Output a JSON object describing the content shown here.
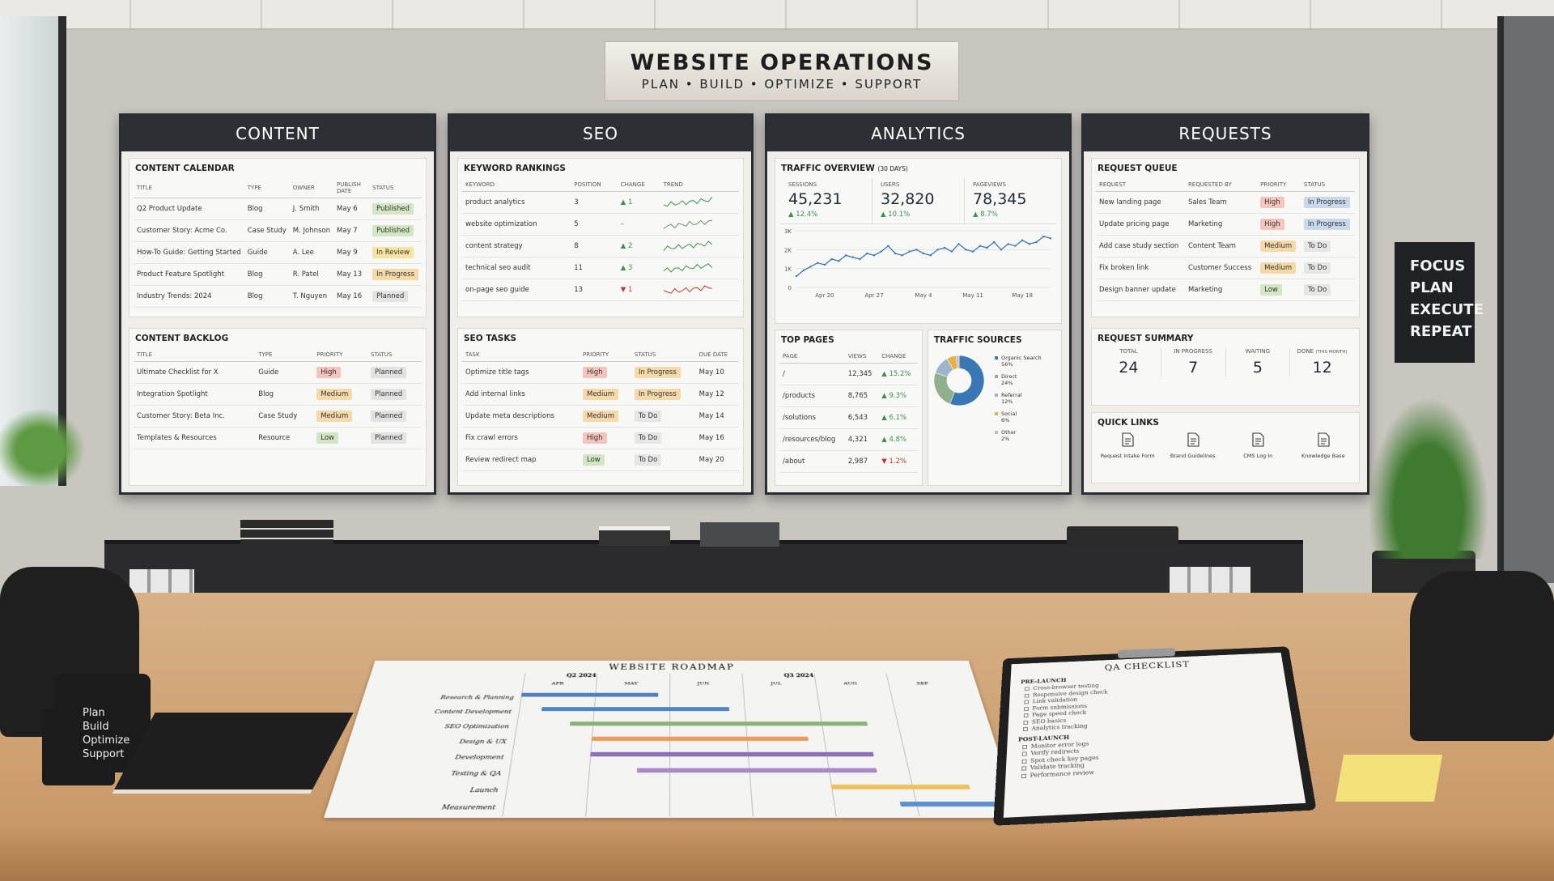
{
  "header": {
    "title": "WEBSITE OPERATIONS",
    "subtitle": "PLAN • BUILD • OPTIMIZE • SUPPORT"
  },
  "content": {
    "title": "CONTENT",
    "calendar": {
      "title": "CONTENT CALENDAR",
      "columns": [
        "TITLE",
        "TYPE",
        "OWNER",
        "PUBLISH DATE",
        "STATUS"
      ],
      "rows": [
        [
          "Q2 Product Update",
          "Blog",
          "J. Smith",
          "May 6",
          {
            "label": "Published",
            "fill": "#d3e6c4"
          }
        ],
        [
          "Customer Story: Acme Co.",
          "Case Study",
          "M. Johnson",
          "May 7",
          {
            "label": "Published",
            "fill": "#d3e6c4"
          }
        ],
        [
          "How-To Guide: Getting Started",
          "Guide",
          "A. Lee",
          "May 9",
          {
            "label": "In Review",
            "fill": "#f8e3a0"
          }
        ],
        [
          "Product Feature Spotlight",
          "Blog",
          "R. Patel",
          "May 13",
          {
            "label": "In Progress",
            "fill": "#f6d9a8"
          }
        ],
        [
          "Industry Trends: 2024",
          "Blog",
          "T. Nguyen",
          "May 16",
          {
            "label": "Planned",
            "fill": "#e3e3e3"
          }
        ]
      ]
    },
    "backlog": {
      "title": "CONTENT BACKLOG",
      "columns": [
        "TITLE",
        "TYPE",
        "PRIORITY",
        "STATUS"
      ],
      "rows": [
        [
          "Ultimate Checklist for X",
          "Guide",
          {
            "label": "High",
            "fill": "#f3c5bd"
          },
          {
            "label": "Planned",
            "fill": "#e3e3e3"
          }
        ],
        [
          "Integration Spotlight",
          "Blog",
          {
            "label": "Medium",
            "fill": "#f6d9a8"
          },
          {
            "label": "Planned",
            "fill": "#e3e3e3"
          }
        ],
        [
          "Customer Story: Beta Inc.",
          "Case Study",
          {
            "label": "Medium",
            "fill": "#f6d9a8"
          },
          {
            "label": "Planned",
            "fill": "#e3e3e3"
          }
        ],
        [
          "Templates & Resources",
          "Resource",
          {
            "label": "Low",
            "fill": "#d3e6c4"
          },
          {
            "label": "Planned",
            "fill": "#e3e3e3"
          }
        ]
      ]
    }
  },
  "seo": {
    "title": "SEO",
    "rankings": {
      "title": "KEYWORD RANKINGS",
      "columns": [
        "KEYWORD",
        "POSITION",
        "CHANGE",
        "TREND"
      ],
      "rows": [
        [
          "product analytics",
          "3",
          {
            "label": "▲ 1",
            "color": "#3f8f4f"
          }
        ],
        [
          "website optimization",
          "5",
          {
            "label": "–",
            "color": "#555555"
          }
        ],
        [
          "content strategy",
          "8",
          {
            "label": "▲ 2",
            "color": "#3f8f4f"
          }
        ],
        [
          "technical seo audit",
          "11",
          {
            "label": "▲ 3",
            "color": "#3f8f4f"
          }
        ],
        [
          "on-page seo guide",
          "13",
          {
            "label": "▼ 1",
            "color": "#c0392b"
          }
        ]
      ]
    },
    "tasks": {
      "title": "SEO TASKS",
      "columns": [
        "TASK",
        "PRIORITY",
        "STATUS",
        "DUE DATE"
      ],
      "rows": [
        [
          "Optimize title tags",
          {
            "label": "High",
            "fill": "#f3c5bd"
          },
          {
            "label": "In Progress",
            "fill": "#f6d9a8"
          },
          "May 10"
        ],
        [
          "Add internal links",
          {
            "label": "Medium",
            "fill": "#f6d9a8"
          },
          {
            "label": "In Progress",
            "fill": "#f6d9a8"
          },
          "May 12"
        ],
        [
          "Update meta descriptions",
          {
            "label": "Medium",
            "fill": "#f6d9a8"
          },
          {
            "label": "To Do",
            "fill": "#e6e6e6"
          },
          "May 14"
        ],
        [
          "Fix crawl errors",
          {
            "label": "High",
            "fill": "#f3c5bd"
          },
          {
            "label": "To Do",
            "fill": "#e6e6e6"
          },
          "May 16"
        ],
        [
          "Review redirect map",
          {
            "label": "Low",
            "fill": "#d3e6c4"
          },
          {
            "label": "To Do",
            "fill": "#e6e6e6"
          },
          "May 20"
        ]
      ]
    }
  },
  "analytics": {
    "title": "ANALYTICS",
    "overview": {
      "title": "TRAFFIC OVERVIEW",
      "note": "(30 DAYS)"
    },
    "kpis": [
      {
        "label": "SESSIONS",
        "value": "45,231",
        "change": "▲ 12.4%"
      },
      {
        "label": "USERS",
        "value": "32,820",
        "change": "▲ 10.1%"
      },
      {
        "label": "PAGEVIEWS",
        "value": "78,345",
        "change": "▲ 8.7%"
      }
    ],
    "traffic_chart": {
      "type": "line",
      "color": "#3a78b5",
      "grid": true,
      "categories": [
        null,
        null,
        null,
        null,
        "Apr 20",
        null,
        null,
        null,
        null,
        null,
        null,
        "Apr 27",
        null,
        null,
        null,
        null,
        null,
        null,
        "May 4",
        null,
        null,
        null,
        null,
        null,
        null,
        "May 11",
        null,
        null,
        null,
        null,
        null,
        null,
        "May 18",
        null,
        null,
        null,
        null
      ],
      "values": [
        600,
        900,
        1100,
        1300,
        1200,
        1500,
        1400,
        1700,
        1600,
        1500,
        1800,
        1700,
        1900,
        2200,
        1800,
        1700,
        1900,
        2000,
        1800,
        1700,
        2000,
        2100,
        1900,
        2300,
        2000,
        1900,
        2200,
        2100,
        2400,
        2000,
        2300,
        2200,
        2500,
        2300,
        2400,
        2700,
        2600
      ],
      "ylim": [
        0,
        3000
      ],
      "yticks": [
        0,
        {
          "value": 1000,
          "label": "1K"
        },
        {
          "value": 2000,
          "label": "2K"
        },
        {
          "value": 3000,
          "label": "3K"
        }
      ]
    },
    "top_pages": {
      "title": "TOP PAGES",
      "columns": [
        "PAGE",
        "VIEWS",
        "CHANGE"
      ],
      "rows": [
        [
          "/",
          "12,345",
          {
            "label": "▲ 15.2%",
            "color": "#3f8f4f"
          }
        ],
        [
          "/products",
          "8,765",
          {
            "label": "▲ 9.3%",
            "color": "#3f8f4f"
          }
        ],
        [
          "/solutions",
          "6,543",
          {
            "label": "▲ 6.1%",
            "color": "#3f8f4f"
          }
        ],
        [
          "/resources/blog",
          "4,321",
          {
            "label": "▲ 4.8%",
            "color": "#3f8f4f"
          }
        ],
        [
          "/about",
          "2,987",
          {
            "label": "▼ 1.2%",
            "color": "#c0392b"
          }
        ]
      ]
    },
    "traffic_sources": {
      "type": "pie",
      "title": "TRAFFIC SOURCES",
      "categories": [
        "Organic Search",
        "Direct",
        "Referral",
        "Social",
        "Other"
      ],
      "values": [
        56,
        24,
        12,
        6,
        2
      ],
      "value_labels": [
        "56%",
        "24%",
        "12%",
        "6%",
        "2%"
      ],
      "colors": [
        "#3a78b5",
        "#8fb08a",
        "#9db6cc",
        "#e8b04b",
        "#bdbdbd"
      ]
    }
  },
  "requests": {
    "title": "REQUESTS",
    "queue": {
      "title": "REQUEST QUEUE",
      "columns": [
        "REQUEST",
        "REQUESTED BY",
        "PRIORITY",
        "STATUS"
      ],
      "rows": [
        [
          "New landing page",
          "Sales Team",
          {
            "label": "High",
            "fill": "#f3c5bd"
          },
          {
            "label": "In Progress",
            "fill": "#c9d9ec"
          }
        ],
        [
          "Update pricing page",
          "Marketing",
          {
            "label": "High",
            "fill": "#f3c5bd"
          },
          {
            "label": "In Progress",
            "fill": "#c9d9ec"
          }
        ],
        [
          "Add case study section",
          "Content Team",
          {
            "label": "Medium",
            "fill": "#f6d9a8"
          },
          {
            "label": "To Do",
            "fill": "#e6e6e6"
          }
        ],
        [
          "Fix broken link",
          "Customer Success",
          {
            "label": "Medium",
            "fill": "#f6d9a8"
          },
          {
            "label": "To Do",
            "fill": "#e6e6e6"
          }
        ],
        [
          "Design banner update",
          "Marketing",
          {
            "label": "Low",
            "fill": "#d3e6c4"
          },
          {
            "label": "To Do",
            "fill": "#e6e6e6"
          }
        ]
      ]
    },
    "summary": {
      "title": "REQUEST SUMMARY",
      "items": [
        {
          "label": "TOTAL",
          "value": 24
        },
        {
          "label": "IN PROGRESS",
          "value": 7
        },
        {
          "label": "WAITING",
          "value": 5
        },
        {
          "label": "DONE",
          "note": "(THIS MONTH)",
          "value": 12
        }
      ]
    },
    "quick_links": {
      "title": "QUICK LINKS",
      "links": [
        "Request Intake Form",
        "Brand Guidelines",
        "CMS Log In",
        "Knowledge Base"
      ]
    }
  },
  "focus_sign": [
    "FOCUS",
    "PLAN",
    "EXECUTE",
    "REPEAT"
  ],
  "mug": [
    "Plan",
    "Build",
    "Optimize",
    "Support"
  ],
  "roadmap": {
    "title": "WEBSITE ROADMAP",
    "quarters": [
      "Q2 2024",
      "Q3 2024"
    ],
    "months": [
      "APR",
      "MAY",
      "JUN",
      "JUL",
      "AUG",
      "SEP"
    ],
    "tasks": [
      {
        "name": "Research & Planning",
        "color": "#4f7fbf"
      },
      {
        "name": "Content Development",
        "color": "#4f86c6"
      },
      {
        "name": "SEO Optimization",
        "color": "#8bb174"
      },
      {
        "name": "Design & UX",
        "color": "#ee9a5f"
      },
      {
        "name": "Development",
        "color": "#8e6fb8"
      },
      {
        "name": "Testing & QA",
        "color": "#a98ac9"
      },
      {
        "name": "Launch",
        "color": "#f0c05a"
      },
      {
        "name": "Measurement",
        "color": "#5b8fd0"
      }
    ]
  },
  "qa_checklist": {
    "title": "QA CHECKLIST",
    "pre_launch": {
      "title": "PRE-LAUNCH",
      "items": [
        "Cross-browser testing",
        "Responsive design check",
        "Link validation",
        "Form submissions",
        "Page speed check",
        "SEO basics",
        "Analytics tracking"
      ]
    },
    "post_launch": {
      "title": "POST-LAUNCH",
      "items": [
        "Monitor error logs",
        "Verify redirects",
        "Spot check key pages",
        "Validate tracking",
        "Performance review"
      ]
    }
  }
}
